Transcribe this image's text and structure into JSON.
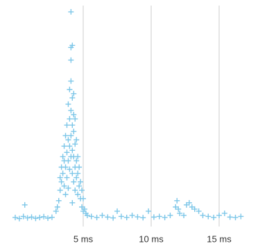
{
  "chart_data": {
    "type": "scatter",
    "x": [
      0,
      0.3,
      0.6,
      0.7,
      0.9,
      1.2,
      1.5,
      1.8,
      2.1,
      2.4,
      2.7,
      3.0,
      3.1,
      3.2,
      3.3,
      3.3,
      3.4,
      3.4,
      3.5,
      3.5,
      3.6,
      3.6,
      3.6,
      3.7,
      3.7,
      3.7,
      3.8,
      3.8,
      3.8,
      3.9,
      3.9,
      3.9,
      3.9,
      4.0,
      4.0,
      4.0,
      4.0,
      4.1,
      4.1,
      4.1,
      4.1,
      4.1,
      4.1,
      4.1,
      4.2,
      4.2,
      4.2,
      4.2,
      4.2,
      4.2,
      4.3,
      4.3,
      4.3,
      4.3,
      4.3,
      4.4,
      4.4,
      4.4,
      4.4,
      4.5,
      4.5,
      4.5,
      4.6,
      4.6,
      4.6,
      4.7,
      4.7,
      4.8,
      4.8,
      4.9,
      4.9,
      5.0,
      5.0,
      5.1,
      5.2,
      5.3,
      5.6,
      6.0,
      6.4,
      6.8,
      7.2,
      7.5,
      7.8,
      8.2,
      8.6,
      9.0,
      9.4,
      9.8,
      10.2,
      10.6,
      11.0,
      11.4,
      11.8,
      11.9,
      12.0,
      12.1,
      12.4,
      12.6,
      12.8,
      13.0,
      13.2,
      13.5,
      13.8,
      14.2,
      14.6,
      15.0,
      15.4,
      15.8,
      16.2,
      16.6
    ],
    "values": [
      1,
      0.5,
      1.5,
      7,
      0.8,
      1.2,
      0.6,
      1,
      1.4,
      0.7,
      1.1,
      4,
      6,
      9,
      14,
      20,
      25,
      18,
      30,
      22,
      28,
      35,
      16,
      40,
      25,
      12,
      45,
      32,
      20,
      55,
      38,
      28,
      15,
      62,
      48,
      35,
      24,
      82,
      76,
      66,
      52,
      40,
      30,
      99,
      83,
      58,
      45,
      33,
      22,
      8,
      60,
      50,
      42,
      30,
      18,
      48,
      36,
      25,
      14,
      38,
      28,
      20,
      30,
      22,
      12,
      25,
      16,
      18,
      10,
      14,
      6,
      10,
      4,
      5,
      3,
      2,
      1.5,
      1,
      2,
      1.2,
      0.8,
      4,
      1.5,
      1,
      2,
      1.3,
      0.9,
      4,
      1.2,
      1.5,
      1,
      2,
      6,
      9,
      5,
      3,
      2,
      7,
      8,
      6,
      5,
      4,
      2,
      1.5,
      1,
      2,
      3,
      1.2,
      1,
      1.5
    ],
    "color": "#7cc6e8",
    "xlim": [
      0,
      19
    ],
    "ylim": [
      0,
      100
    ],
    "xticks": [
      {
        "value": 5,
        "label": "5 ms"
      },
      {
        "value": 10,
        "label": "10 ms"
      },
      {
        "value": 15,
        "label": "15 ms"
      }
    ],
    "grid": true
  }
}
